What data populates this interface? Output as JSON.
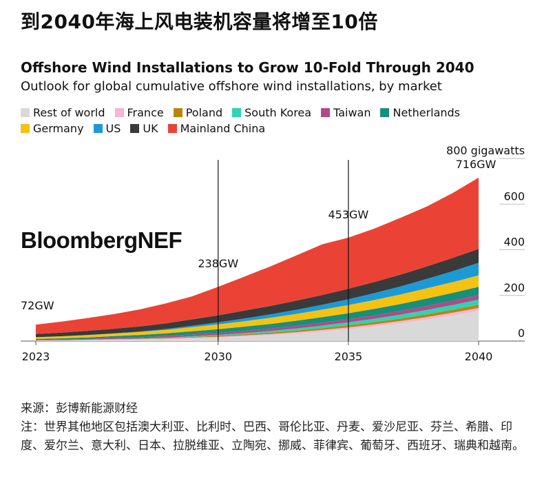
{
  "headline": "到2040年海上风电装机容量将增至10倍",
  "source": "来源：彭博新能源财经",
  "note": "注：世界其他地区包括澳大利亚、比利时、巴西、哥伦比亚、丹麦、爱沙尼亚、芬兰、希腊、印度、爱尔兰、意大利、日本、拉脱维亚、立陶宛、挪威、菲律宾、葡萄牙、西班牙、瑞典和越南。",
  "watermark": "BloombergNEF",
  "chart_data": {
    "type": "area",
    "stacked": true,
    "title": "Offshore Wind Installations to Grow 10-Fold Through 2040",
    "subtitle": "Outlook for global cumulative offshore wind installations, by market",
    "xlabel": "",
    "ylabel": "800 gigawatts",
    "ylim": [
      0,
      800
    ],
    "yticks": [
      "0",
      "200",
      "400",
      "600",
      "800 gigawatts"
    ],
    "ytick_values": [
      0,
      200,
      400,
      600,
      800
    ],
    "xticks": [
      "2023",
      "2030",
      "2035",
      "2040"
    ],
    "xtick_values": [
      2023,
      2030,
      2035,
      2040
    ],
    "grid": true,
    "legend_position": "top",
    "x": [
      2023,
      2024,
      2025,
      2026,
      2027,
      2028,
      2029,
      2030,
      2031,
      2032,
      2033,
      2034,
      2035,
      2036,
      2037,
      2038,
      2039,
      2040
    ],
    "series": [
      {
        "name": "Rest of world",
        "color": "#d9d9d9",
        "values": [
          2,
          3,
          4,
          5,
          6,
          8,
          11,
          15,
          20,
          26,
          33,
          42,
          52,
          64,
          78,
          94,
          112,
          132
        ]
      },
      {
        "name": "France",
        "color": "#f5b5d5",
        "values": [
          1,
          1,
          2,
          2,
          3,
          3,
          4,
          4,
          5,
          5,
          6,
          7,
          8,
          9,
          10,
          11,
          12,
          13
        ]
      },
      {
        "name": "Poland",
        "color": "#b8860b",
        "values": [
          0,
          0,
          0,
          1,
          1,
          2,
          3,
          4,
          5,
          6,
          7,
          8,
          9,
          10,
          11,
          12,
          13,
          14
        ]
      },
      {
        "name": "South Korea",
        "color": "#2ed4b4",
        "values": [
          0,
          0,
          0,
          1,
          1,
          2,
          3,
          4,
          5,
          7,
          9,
          11,
          13,
          15,
          17,
          19,
          21,
          23
        ]
      },
      {
        "name": "Taiwan",
        "color": "#b04a8a",
        "values": [
          2,
          3,
          4,
          5,
          6,
          7,
          8,
          9,
          10,
          11,
          12,
          13,
          14,
          15,
          16,
          18,
          19,
          20
        ]
      },
      {
        "name": "Netherlands",
        "color": "#178f7b",
        "values": [
          4,
          5,
          6,
          8,
          10,
          12,
          14,
          16,
          18,
          20,
          22,
          24,
          26,
          28,
          30,
          32,
          34,
          36
        ]
      },
      {
        "name": "Germany",
        "color": "#f5c211",
        "values": [
          8,
          9,
          10,
          11,
          13,
          15,
          18,
          21,
          24,
          27,
          30,
          33,
          36,
          39,
          42,
          45,
          47,
          50
        ]
      },
      {
        "name": "US",
        "color": "#1b9ad6",
        "values": [
          0,
          0,
          1,
          1,
          2,
          4,
          6,
          9,
          12,
          15,
          18,
          21,
          25,
          30,
          35,
          41,
          48,
          55
        ]
      },
      {
        "name": "UK",
        "color": "#3a3a3a",
        "values": [
          14,
          16,
          18,
          20,
          22,
          25,
          28,
          31,
          34,
          37,
          40,
          43,
          46,
          49,
          52,
          55,
          58,
          61
        ]
      },
      {
        "name": "Mainland China",
        "color": "#ea4335",
        "values": [
          41,
          48,
          56,
          64,
          75,
          87,
          101,
          125,
          149,
          173,
          198,
          222,
          224,
          234,
          249,
          262,
          284,
          312
        ]
      }
    ],
    "annotations": [
      {
        "x": 2023,
        "text": "72GW"
      },
      {
        "x": 2030,
        "text": "238GW"
      },
      {
        "x": 2035,
        "text": "453GW"
      },
      {
        "x": 2040,
        "text": "716GW"
      }
    ]
  }
}
